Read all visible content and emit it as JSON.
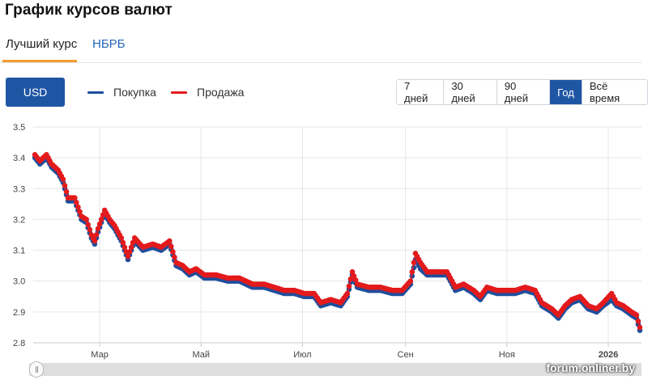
{
  "header": {
    "title": "График курсов валют"
  },
  "tabs": [
    {
      "label": "Лучший курс",
      "active": true
    },
    {
      "label": "НБРБ",
      "active": false
    }
  ],
  "toolbar": {
    "currency_label": "USD",
    "legend": [
      {
        "label": "Покупка",
        "color": "#1f4e9c"
      },
      {
        "label": "Продажа",
        "color": "#e31a1c"
      }
    ],
    "periods": [
      {
        "label": "7 дней",
        "active": false
      },
      {
        "label": "30 дней",
        "active": false
      },
      {
        "label": "90 дней",
        "active": false
      },
      {
        "label": "Год",
        "active": true
      },
      {
        "label": "Всё время",
        "active": false
      }
    ]
  },
  "watermark": "forum.onliner.by",
  "chart_data": {
    "type": "line",
    "title": "",
    "xlabel": "",
    "ylabel": "",
    "ylim": [
      2.8,
      3.5
    ],
    "xlim": [
      "2025-01-20",
      "2026-01-21"
    ],
    "yticks": [
      "3.5",
      "3.4",
      "3.3",
      "3.2",
      "3.1",
      "3.0",
      "2.9",
      "2.8"
    ],
    "xticks": [
      {
        "label": "Мар",
        "date": "2025-03-01"
      },
      {
        "label": "Май",
        "date": "2025-05-01"
      },
      {
        "label": "Июл",
        "date": "2025-07-01"
      },
      {
        "label": "Сен",
        "date": "2025-09-01"
      },
      {
        "label": "Ноя",
        "date": "2025-11-01"
      },
      {
        "label": "2026",
        "date": "2026-01-01"
      }
    ],
    "grid": true,
    "legend_position": "top-left",
    "series": [
      {
        "name": "Покупка",
        "color": "#1f4e9c",
        "points": [
          [
            "2025-01-21",
            3.4
          ],
          [
            "2025-01-24",
            3.38
          ],
          [
            "2025-01-28",
            3.4
          ],
          [
            "2025-01-31",
            3.37
          ],
          [
            "2025-02-04",
            3.35
          ],
          [
            "2025-02-07",
            3.32
          ],
          [
            "2025-02-10",
            3.26
          ],
          [
            "2025-02-14",
            3.26
          ],
          [
            "2025-02-18",
            3.2
          ],
          [
            "2025-02-21",
            3.19
          ],
          [
            "2025-02-24",
            3.14
          ],
          [
            "2025-02-26",
            3.12
          ],
          [
            "2025-02-28",
            3.16
          ],
          [
            "2025-03-04",
            3.22
          ],
          [
            "2025-03-07",
            3.19
          ],
          [
            "2025-03-10",
            3.17
          ],
          [
            "2025-03-14",
            3.13
          ],
          [
            "2025-03-18",
            3.07
          ],
          [
            "2025-03-22",
            3.13
          ],
          [
            "2025-03-27",
            3.1
          ],
          [
            "2025-04-02",
            3.11
          ],
          [
            "2025-04-07",
            3.1
          ],
          [
            "2025-04-12",
            3.12
          ],
          [
            "2025-04-16",
            3.05
          ],
          [
            "2025-04-20",
            3.04
          ],
          [
            "2025-04-24",
            3.02
          ],
          [
            "2025-04-28",
            3.03
          ],
          [
            "2025-05-03",
            3.01
          ],
          [
            "2025-05-10",
            3.01
          ],
          [
            "2025-05-17",
            3.0
          ],
          [
            "2025-05-24",
            3.0
          ],
          [
            "2025-06-01",
            2.98
          ],
          [
            "2025-06-08",
            2.98
          ],
          [
            "2025-06-14",
            2.97
          ],
          [
            "2025-06-20",
            2.96
          ],
          [
            "2025-06-26",
            2.96
          ],
          [
            "2025-07-02",
            2.95
          ],
          [
            "2025-07-08",
            2.95
          ],
          [
            "2025-07-12",
            2.92
          ],
          [
            "2025-07-18",
            2.93
          ],
          [
            "2025-07-24",
            2.92
          ],
          [
            "2025-07-28",
            2.95
          ],
          [
            "2025-07-31",
            3.02
          ],
          [
            "2025-08-03",
            2.98
          ],
          [
            "2025-08-10",
            2.97
          ],
          [
            "2025-08-17",
            2.97
          ],
          [
            "2025-08-24",
            2.96
          ],
          [
            "2025-08-30",
            2.96
          ],
          [
            "2025-09-04",
            2.99
          ],
          [
            "2025-09-07",
            3.07
          ],
          [
            "2025-09-10",
            3.04
          ],
          [
            "2025-09-14",
            3.02
          ],
          [
            "2025-09-20",
            3.02
          ],
          [
            "2025-09-26",
            3.02
          ],
          [
            "2025-10-01",
            2.97
          ],
          [
            "2025-10-06",
            2.98
          ],
          [
            "2025-10-12",
            2.96
          ],
          [
            "2025-10-16",
            2.94
          ],
          [
            "2025-10-20",
            2.97
          ],
          [
            "2025-10-26",
            2.96
          ],
          [
            "2025-10-31",
            2.96
          ],
          [
            "2025-11-06",
            2.96
          ],
          [
            "2025-11-12",
            2.97
          ],
          [
            "2025-11-18",
            2.96
          ],
          [
            "2025-11-22",
            2.92
          ],
          [
            "2025-11-28",
            2.9
          ],
          [
            "2025-12-02",
            2.88
          ],
          [
            "2025-12-06",
            2.91
          ],
          [
            "2025-12-10",
            2.93
          ],
          [
            "2025-12-15",
            2.94
          ],
          [
            "2025-12-20",
            2.91
          ],
          [
            "2025-12-25",
            2.9
          ],
          [
            "2025-12-29",
            2.92
          ],
          [
            "2026-01-03",
            2.94
          ],
          [
            "2026-01-06",
            2.92
          ],
          [
            "2026-01-10",
            2.91
          ],
          [
            "2026-01-15",
            2.89
          ],
          [
            "2026-01-18",
            2.88
          ],
          [
            "2026-01-20",
            2.84
          ]
        ]
      },
      {
        "name": "Продажа",
        "color": "#e31a1c",
        "points": [
          [
            "2025-01-21",
            3.41
          ],
          [
            "2025-01-24",
            3.39
          ],
          [
            "2025-01-28",
            3.41
          ],
          [
            "2025-01-31",
            3.38
          ],
          [
            "2025-02-04",
            3.36
          ],
          [
            "2025-02-07",
            3.33
          ],
          [
            "2025-02-10",
            3.27
          ],
          [
            "2025-02-14",
            3.27
          ],
          [
            "2025-02-18",
            3.21
          ],
          [
            "2025-02-21",
            3.2
          ],
          [
            "2025-02-24",
            3.15
          ],
          [
            "2025-02-26",
            3.13
          ],
          [
            "2025-02-28",
            3.17
          ],
          [
            "2025-03-04",
            3.23
          ],
          [
            "2025-03-07",
            3.2
          ],
          [
            "2025-03-10",
            3.18
          ],
          [
            "2025-03-14",
            3.14
          ],
          [
            "2025-03-18",
            3.08
          ],
          [
            "2025-03-22",
            3.14
          ],
          [
            "2025-03-27",
            3.11
          ],
          [
            "2025-04-02",
            3.12
          ],
          [
            "2025-04-07",
            3.11
          ],
          [
            "2025-04-12",
            3.13
          ],
          [
            "2025-04-16",
            3.06
          ],
          [
            "2025-04-20",
            3.05
          ],
          [
            "2025-04-24",
            3.03
          ],
          [
            "2025-04-28",
            3.04
          ],
          [
            "2025-05-03",
            3.02
          ],
          [
            "2025-05-10",
            3.02
          ],
          [
            "2025-05-17",
            3.01
          ],
          [
            "2025-05-24",
            3.01
          ],
          [
            "2025-06-01",
            2.99
          ],
          [
            "2025-06-08",
            2.99
          ],
          [
            "2025-06-14",
            2.98
          ],
          [
            "2025-06-20",
            2.97
          ],
          [
            "2025-06-26",
            2.97
          ],
          [
            "2025-07-02",
            2.96
          ],
          [
            "2025-07-08",
            2.96
          ],
          [
            "2025-07-12",
            2.93
          ],
          [
            "2025-07-18",
            2.94
          ],
          [
            "2025-07-24",
            2.93
          ],
          [
            "2025-07-28",
            2.96
          ],
          [
            "2025-07-31",
            3.03
          ],
          [
            "2025-08-03",
            2.99
          ],
          [
            "2025-08-10",
            2.98
          ],
          [
            "2025-08-17",
            2.98
          ],
          [
            "2025-08-24",
            2.97
          ],
          [
            "2025-08-30",
            2.97
          ],
          [
            "2025-09-04",
            3.0
          ],
          [
            "2025-09-07",
            3.09
          ],
          [
            "2025-09-10",
            3.06
          ],
          [
            "2025-09-14",
            3.03
          ],
          [
            "2025-09-20",
            3.03
          ],
          [
            "2025-09-26",
            3.03
          ],
          [
            "2025-10-01",
            2.98
          ],
          [
            "2025-10-06",
            2.99
          ],
          [
            "2025-10-12",
            2.97
          ],
          [
            "2025-10-16",
            2.95
          ],
          [
            "2025-10-20",
            2.98
          ],
          [
            "2025-10-26",
            2.97
          ],
          [
            "2025-10-31",
            2.97
          ],
          [
            "2025-11-06",
            2.97
          ],
          [
            "2025-11-12",
            2.98
          ],
          [
            "2025-11-18",
            2.97
          ],
          [
            "2025-11-22",
            2.93
          ],
          [
            "2025-11-28",
            2.91
          ],
          [
            "2025-12-02",
            2.89
          ],
          [
            "2025-12-06",
            2.92
          ],
          [
            "2025-12-10",
            2.94
          ],
          [
            "2025-12-15",
            2.95
          ],
          [
            "2025-12-20",
            2.92
          ],
          [
            "2025-12-25",
            2.91
          ],
          [
            "2025-12-29",
            2.93
          ],
          [
            "2026-01-03",
            2.96
          ],
          [
            "2026-01-06",
            2.93
          ],
          [
            "2026-01-10",
            2.92
          ],
          [
            "2026-01-15",
            2.9
          ],
          [
            "2026-01-18",
            2.89
          ],
          [
            "2026-01-20",
            2.85
          ]
        ]
      }
    ]
  }
}
